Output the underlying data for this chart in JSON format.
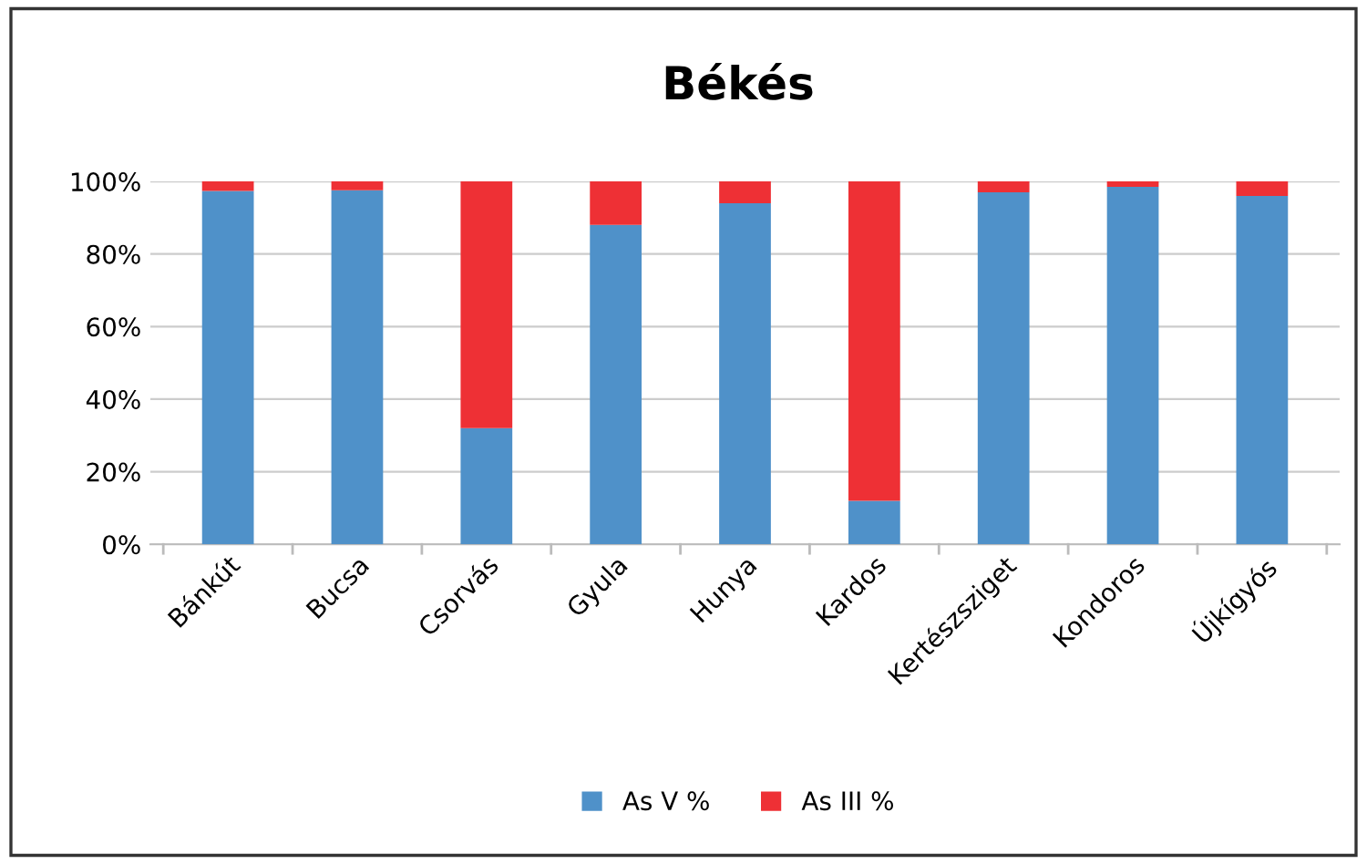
{
  "chart_data": {
    "type": "bar",
    "title": "Békés",
    "stacked": true,
    "categories": [
      "Bánkút",
      "Bucsa",
      "Csorvás",
      "Gyula",
      "Hunya",
      "Kardos",
      "Kertészsziget",
      "Kondoros",
      "Újkígyós"
    ],
    "series": [
      {
        "name": "As V %",
        "color": "#4f91c9",
        "values": [
          97.4,
          97.6,
          32,
          88,
          94,
          12,
          97,
          98.5,
          96
        ]
      },
      {
        "name": "As III %",
        "color": "#ee3035",
        "values": [
          2.6,
          2.4,
          68,
          12,
          6,
          88,
          3,
          1.5,
          4
        ]
      }
    ],
    "ylim": [
      0,
      100
    ],
    "yticks": [
      {
        "value": 0,
        "label": "0%"
      },
      {
        "value": 20,
        "label": "20%"
      },
      {
        "value": 40,
        "label": "40%"
      },
      {
        "value": 60,
        "label": "60%"
      },
      {
        "value": 80,
        "label": "80%"
      },
      {
        "value": 100,
        "label": "100%"
      }
    ],
    "grid": "y",
    "legend": "bottom"
  }
}
